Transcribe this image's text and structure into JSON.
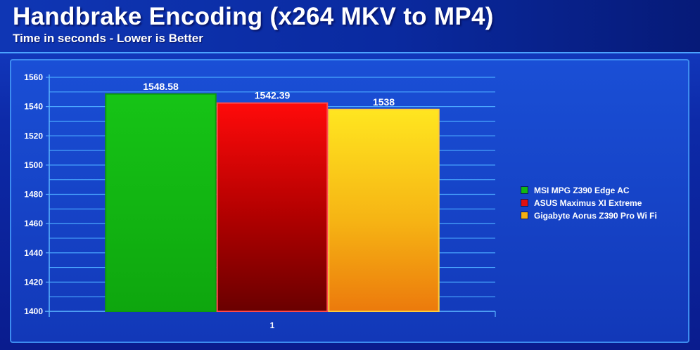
{
  "header": {
    "title": "Handbrake Encoding (x264 MKV to MP4)",
    "subtitle": "Time in seconds - Lower is Better"
  },
  "chart_data": {
    "type": "bar",
    "title": "Handbrake Encoding (x264 MKV to MP4)",
    "subtitle": "Time in seconds - Lower is Better",
    "categories": [
      "1"
    ],
    "series": [
      {
        "name": "MSI MPG Z390 Edge AC",
        "values": [
          1548.58
        ],
        "label": "1548.58",
        "color": "#12b812"
      },
      {
        "name": "ASUS Maximus XI Extreme",
        "values": [
          1542.39
        ],
        "label": "1542.39",
        "color": "#c00000"
      },
      {
        "name": "Gigabyte Aorus Z390 Pro Wi Fi",
        "values": [
          1538
        ],
        "label": "1538",
        "color": "#f5b010"
      }
    ],
    "ylim": [
      1400,
      1560
    ],
    "yticks": [
      "1400",
      "1420",
      "1440",
      "1460",
      "1480",
      "1500",
      "1520",
      "1540",
      "1560"
    ],
    "xlabel": "",
    "ylabel": "",
    "grid": true,
    "legend": "right"
  }
}
